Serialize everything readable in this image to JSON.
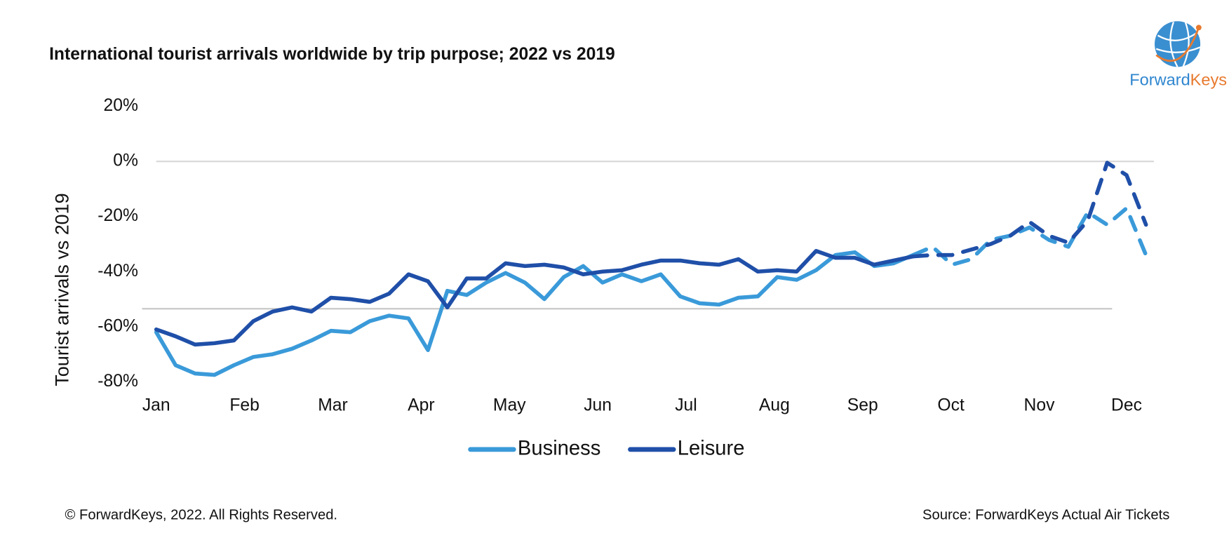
{
  "chart_data": {
    "type": "line",
    "title": "International tourist arrivals worldwide by trip purpose; 2022 vs 2019",
    "y_label": "Tourist arrivals vs 2019",
    "ylim": [
      -80,
      20
    ],
    "yticks": [
      {
        "value": 20,
        "label": "20%"
      },
      {
        "value": 0,
        "label": "0%"
      },
      {
        "value": -20,
        "label": "-20%"
      },
      {
        "value": -40,
        "label": "-40%"
      },
      {
        "value": -60,
        "label": "-60%"
      },
      {
        "value": -80,
        "label": "-80%"
      }
    ],
    "xlim": [
      0,
      51
    ],
    "xticks": [
      {
        "value": 0,
        "label": "Jan"
      },
      {
        "value": 4.55,
        "label": "Feb"
      },
      {
        "value": 9.1,
        "label": "Mar"
      },
      {
        "value": 13.65,
        "label": "Apr"
      },
      {
        "value": 18.2,
        "label": "May"
      },
      {
        "value": 22.75,
        "label": "Jun"
      },
      {
        "value": 27.3,
        "label": "Jul"
      },
      {
        "value": 31.85,
        "label": "Aug"
      },
      {
        "value": 36.4,
        "label": "Sep"
      },
      {
        "value": 40.95,
        "label": "Oct"
      },
      {
        "value": 45.5,
        "label": "Nov"
      },
      {
        "value": 50,
        "label": "Dec"
      }
    ],
    "zero_line": true,
    "reference_line": -53.5,
    "dashed_from": 39,
    "series": [
      {
        "name": "Business",
        "color": "#3a9ad9",
        "values": [
          -62,
          -74,
          -77,
          -77.5,
          -74,
          -71,
          -70,
          -68,
          -65,
          -61.5,
          -62,
          -58,
          -56,
          -57,
          -68.5,
          -47,
          -48.5,
          -44,
          -40.5,
          -44,
          -50,
          -42,
          -38,
          -44,
          -41,
          -43.5,
          -41,
          -49,
          -51.5,
          -52,
          -49.5,
          -49,
          -42,
          -43,
          -39.5,
          -34,
          -33,
          -38,
          -37,
          -34,
          -31,
          -37.5,
          -35.5,
          -28.5,
          -27,
          -24,
          -28.5,
          -31,
          -18.5,
          -23,
          -17,
          -34
        ]
      },
      {
        "name": "Leisure",
        "color": "#1f4fa8",
        "values": [
          -61,
          -63.5,
          -66.5,
          -66,
          -65,
          -58,
          -54.5,
          -53,
          -54.5,
          -49.5,
          -50,
          -51,
          -48,
          -41,
          -43.5,
          -53,
          -42.5,
          -42.5,
          -37,
          -38,
          -37.5,
          -38.5,
          -41,
          -40,
          -39.5,
          -37.5,
          -36,
          -36,
          -37,
          -37.5,
          -35.5,
          -40,
          -39.5,
          -40,
          -32.5,
          -35,
          -35,
          -37.5,
          -36,
          -34.5,
          -34,
          -34,
          -32,
          -30,
          -27,
          -22,
          -27,
          -29.5,
          -21.5,
          -0.5,
          -5,
          -23
        ]
      }
    ],
    "legend": "bottom"
  },
  "logo": {
    "part1": "Forward",
    "part2": "Keys"
  },
  "footer": {
    "copyright": "© ForwardKeys, 2022. All Rights Reserved.",
    "source": "Source: ForwardKeys Actual Air Tickets"
  }
}
